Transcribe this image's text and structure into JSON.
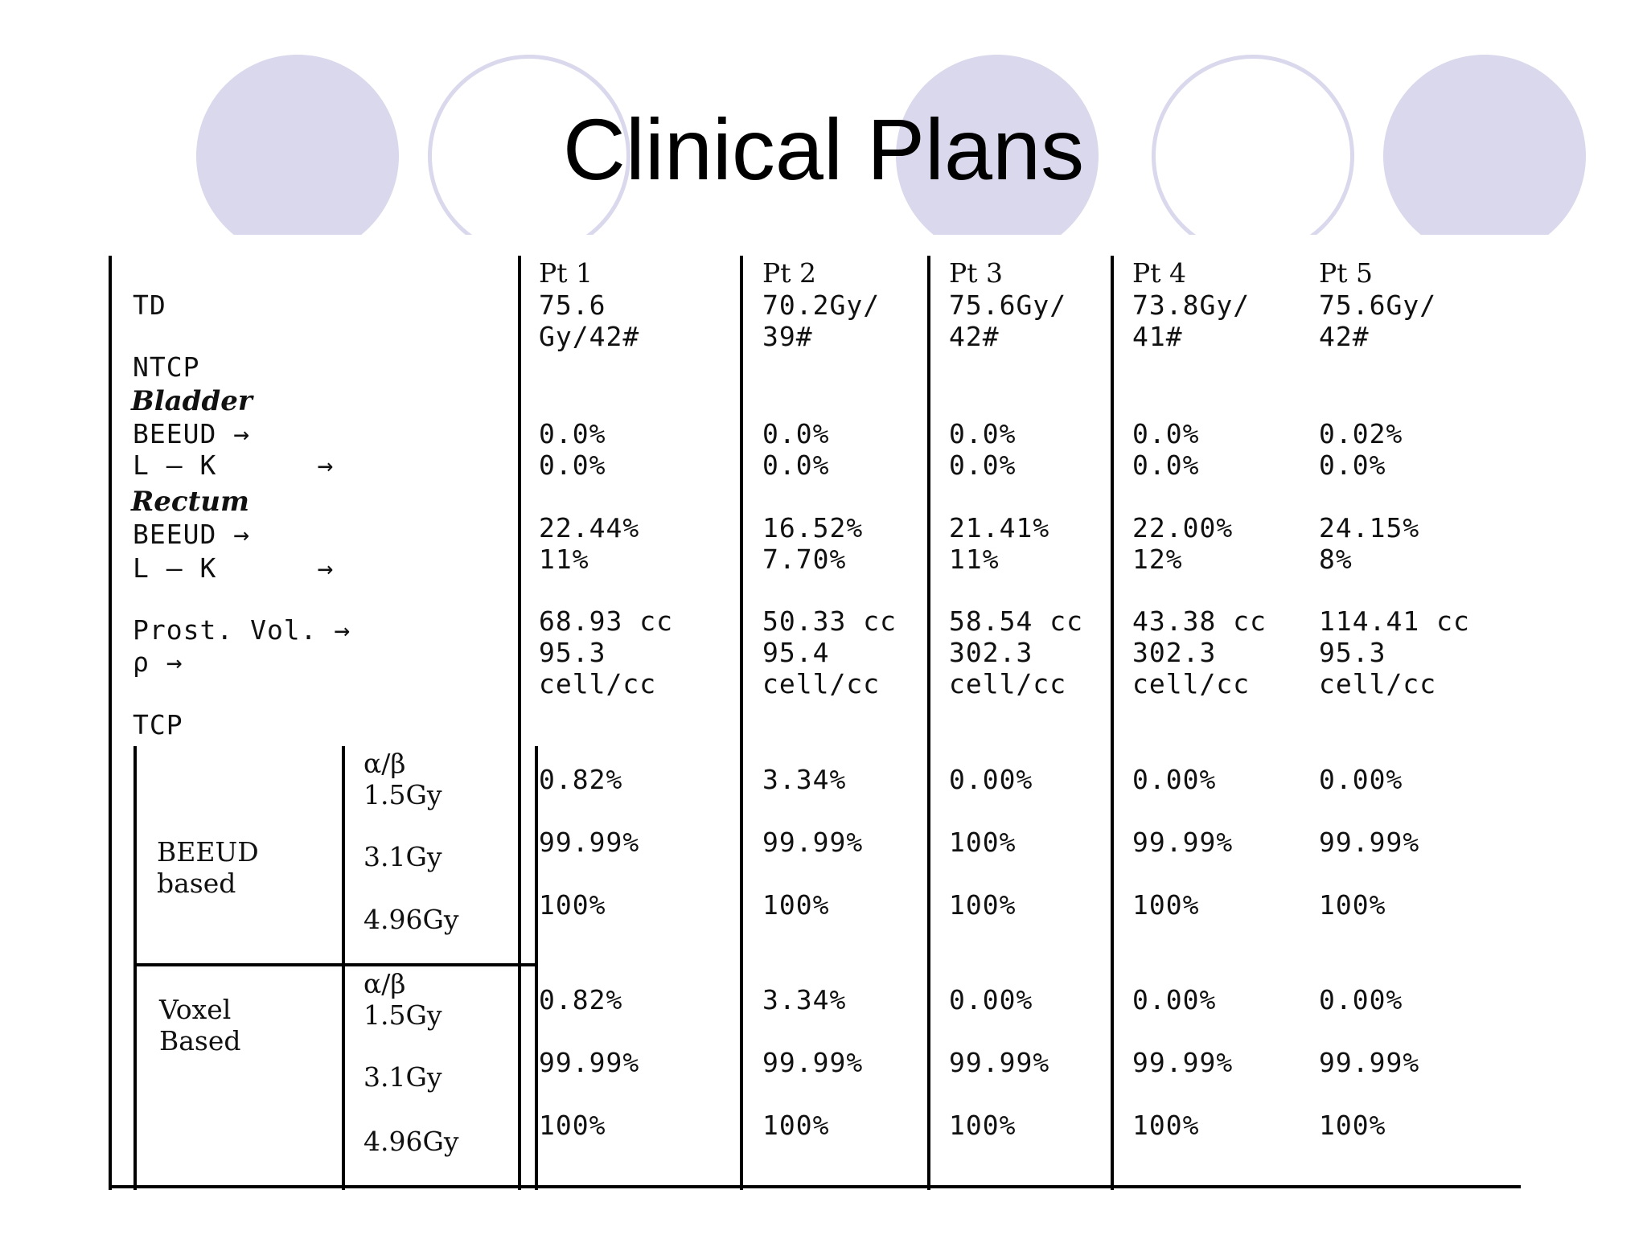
{
  "slide": {
    "title": "Clinical Plans",
    "accent_color": "#d9d8ec"
  },
  "table": {
    "patients": [
      "Pt 1",
      "Pt 2",
      "Pt 3",
      "Pt 4",
      "Pt 5"
    ],
    "row_labels": {
      "td": "TD",
      "ntcp": "NTCP",
      "bladder": "Bladder",
      "rectum": "Rectum",
      "beeud": "BEEUD →",
      "lk": "L – K      →",
      "prost_vol": "Prost. Vol. →",
      "rho": "ρ →",
      "tcp": "TCP",
      "beeud_based": "BEEUD\nbased",
      "voxel_based": "Voxel\nBased"
    },
    "alpha_beta": {
      "beeud": [
        "α/β\n1.5Gy",
        "3.1Gy",
        "4.96Gy"
      ],
      "voxel": [
        "α/β\n1.5Gy",
        "3.1Gy",
        "4.96Gy"
      ]
    },
    "td": [
      "75.6\nGy/42#",
      "70.2Gy/\n39#",
      "75.6Gy/\n42#",
      "73.8Gy/\n41#",
      "75.6Gy/\n42#"
    ],
    "bladder": [
      [
        "0.0%",
        "0.0%"
      ],
      [
        "0.0%",
        "0.0%"
      ],
      [
        "0.0%",
        "0.0%"
      ],
      [
        "0.0%",
        "0.0%"
      ],
      [
        "0.02%",
        "0.0%"
      ]
    ],
    "rectum": [
      [
        "22.44%",
        "11%"
      ],
      [
        "16.52%",
        "7.70%"
      ],
      [
        "21.41%",
        "11%"
      ],
      [
        "22.00%",
        "12%"
      ],
      [
        "24.15%",
        "8%"
      ]
    ],
    "prost": [
      [
        "68.93 cc",
        "95.3\ncell/cc"
      ],
      [
        "50.33 cc",
        "95.4\ncell/cc"
      ],
      [
        "58.54 cc",
        "302.3\ncell/cc"
      ],
      [
        "43.38 cc",
        "302.3\ncell/cc"
      ],
      [
        "114.41 cc",
        "95.3\ncell/cc"
      ]
    ],
    "tcp_beeud": [
      [
        "0.82%",
        "99.99%",
        "100%"
      ],
      [
        "3.34%",
        "99.99%",
        "100%"
      ],
      [
        "0.00%",
        "100%",
        "100%"
      ],
      [
        "0.00%",
        "99.99%",
        "100%"
      ],
      [
        "0.00%",
        "99.99%",
        "100%"
      ]
    ],
    "tcp_voxel": [
      [
        "0.82%",
        "99.99%",
        "100%"
      ],
      [
        "3.34%",
        "99.99%",
        "100%"
      ],
      [
        "0.00%",
        "99.99%",
        "100%"
      ],
      [
        "0.00%",
        "99.99%",
        "100%"
      ],
      [
        "0.00%",
        "99.99%",
        "100%"
      ]
    ]
  }
}
